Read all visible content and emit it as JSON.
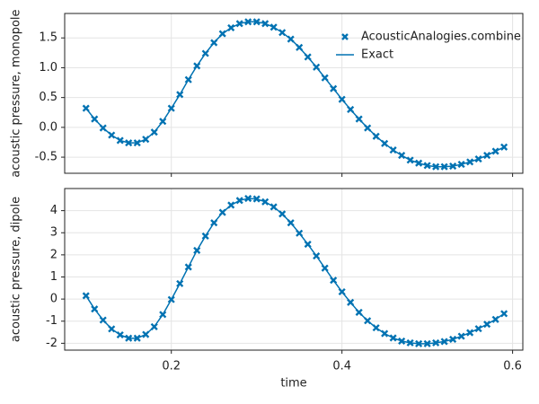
{
  "chart_data": [
    {
      "type": "line",
      "ylabel": "acoustic pressure, monopole",
      "x": [
        0.1,
        0.11,
        0.12,
        0.13,
        0.14,
        0.15,
        0.16,
        0.17,
        0.18,
        0.19,
        0.2,
        0.21,
        0.22,
        0.23,
        0.24,
        0.25,
        0.26,
        0.27,
        0.28,
        0.29,
        0.3,
        0.31,
        0.32,
        0.33,
        0.34,
        0.35,
        0.36,
        0.37,
        0.38,
        0.39,
        0.4,
        0.41,
        0.42,
        0.43,
        0.44,
        0.45,
        0.46,
        0.47,
        0.48,
        0.49,
        0.5,
        0.51,
        0.52,
        0.53,
        0.54,
        0.55,
        0.56,
        0.57,
        0.58,
        0.59
      ],
      "xlim": [
        0.075,
        0.612
      ],
      "ylim": [
        -0.77,
        1.91
      ],
      "yticks": [
        1.5,
        1.0,
        0.5,
        0.0,
        -0.5
      ],
      "grid": true,
      "legend": "upper right",
      "series": [
        {
          "name": "AcousticAnalogies.combine",
          "color": "#0072b2",
          "marker": "x",
          "values": [
            0.32,
            0.14,
            -0.01,
            -0.13,
            -0.22,
            -0.26,
            -0.26,
            -0.2,
            -0.08,
            0.1,
            0.32,
            0.55,
            0.8,
            1.03,
            1.24,
            1.42,
            1.57,
            1.67,
            1.74,
            1.77,
            1.77,
            1.74,
            1.68,
            1.59,
            1.48,
            1.34,
            1.18,
            1.01,
            0.83,
            0.65,
            0.47,
            0.3,
            0.14,
            -0.01,
            -0.15,
            -0.27,
            -0.38,
            -0.47,
            -0.55,
            -0.6,
            -0.64,
            -0.66,
            -0.66,
            -0.65,
            -0.62,
            -0.58,
            -0.53,
            -0.47,
            -0.4,
            -0.33
          ]
        },
        {
          "name": "Exact",
          "color": "#0072b2",
          "marker": "line",
          "values": [
            0.32,
            0.14,
            -0.01,
            -0.13,
            -0.22,
            -0.26,
            -0.26,
            -0.2,
            -0.08,
            0.1,
            0.32,
            0.55,
            0.8,
            1.03,
            1.24,
            1.42,
            1.57,
            1.67,
            1.74,
            1.77,
            1.77,
            1.74,
            1.68,
            1.59,
            1.48,
            1.34,
            1.18,
            1.01,
            0.83,
            0.65,
            0.47,
            0.3,
            0.14,
            -0.01,
            -0.15,
            -0.27,
            -0.38,
            -0.47,
            -0.55,
            -0.6,
            -0.64,
            -0.66,
            -0.66,
            -0.65,
            -0.62,
            -0.58,
            -0.53,
            -0.47,
            -0.4,
            -0.33
          ]
        }
      ]
    },
    {
      "type": "line",
      "ylabel": "acoustic pressure, dipole",
      "xlabel": "time",
      "x": [
        0.1,
        0.11,
        0.12,
        0.13,
        0.14,
        0.15,
        0.16,
        0.17,
        0.18,
        0.19,
        0.2,
        0.21,
        0.22,
        0.23,
        0.24,
        0.25,
        0.26,
        0.27,
        0.28,
        0.29,
        0.3,
        0.31,
        0.32,
        0.33,
        0.34,
        0.35,
        0.36,
        0.37,
        0.38,
        0.39,
        0.4,
        0.41,
        0.42,
        0.43,
        0.44,
        0.45,
        0.46,
        0.47,
        0.48,
        0.49,
        0.5,
        0.51,
        0.52,
        0.53,
        0.54,
        0.55,
        0.56,
        0.57,
        0.58,
        0.59
      ],
      "xlim": [
        0.075,
        0.612
      ],
      "xticks": [
        0.2,
        0.4,
        0.6
      ],
      "ylim": [
        -2.31,
        5.0
      ],
      "yticks": [
        4,
        3,
        2,
        1,
        0,
        -1,
        -2
      ],
      "grid": true,
      "series": [
        {
          "color": "#0072b2",
          "marker": "x",
          "values": [
            0.15,
            -0.45,
            -0.95,
            -1.35,
            -1.62,
            -1.77,
            -1.77,
            -1.6,
            -1.25,
            -0.7,
            -0.02,
            0.7,
            1.45,
            2.2,
            2.85,
            3.45,
            3.92,
            4.25,
            4.46,
            4.55,
            4.53,
            4.4,
            4.17,
            3.85,
            3.45,
            2.98,
            2.48,
            1.95,
            1.4,
            0.85,
            0.33,
            -0.15,
            -0.6,
            -0.98,
            -1.3,
            -1.56,
            -1.76,
            -1.9,
            -1.98,
            -2.02,
            -2.02,
            -1.98,
            -1.92,
            -1.82,
            -1.68,
            -1.52,
            -1.34,
            -1.14,
            -0.92,
            -0.66
          ]
        },
        {
          "color": "#0072b2",
          "marker": "line",
          "values": [
            0.15,
            -0.45,
            -0.95,
            -1.35,
            -1.62,
            -1.77,
            -1.77,
            -1.6,
            -1.25,
            -0.7,
            -0.02,
            0.7,
            1.45,
            2.2,
            2.85,
            3.45,
            3.92,
            4.25,
            4.46,
            4.55,
            4.53,
            4.4,
            4.17,
            3.85,
            3.45,
            2.98,
            2.48,
            1.95,
            1.4,
            0.85,
            0.33,
            -0.15,
            -0.6,
            -0.98,
            -1.3,
            -1.56,
            -1.76,
            -1.9,
            -1.98,
            -2.02,
            -2.02,
            -1.98,
            -1.92,
            -1.82,
            -1.68,
            -1.52,
            -1.34,
            -1.14,
            -0.92,
            -0.66
          ]
        }
      ]
    }
  ]
}
